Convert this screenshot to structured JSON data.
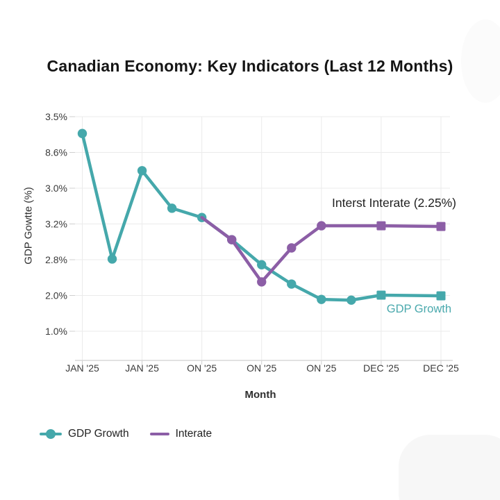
{
  "chart_data": {
    "type": "line",
    "title": "Canadian Economy: Key Indicators (Last 12 Months)",
    "xlabel": "Month",
    "ylabel": "GDP Gowtte (%)",
    "x_tick_labels": [
      "JAN '25",
      "JAN '25",
      "ON '25",
      "ON '25",
      "ON '25",
      "DEC '25",
      "DEC '25"
    ],
    "y_tick_labels": [
      "3.5%",
      "8.6%",
      "3.0%",
      "3.2%",
      "2.8%",
      "2.0%",
      "1.0%"
    ],
    "grid": true,
    "colors": {
      "gdp_teal": "#45A8AB",
      "interate_purple": "#8C5EA6",
      "grid_line": "#ebebeb",
      "axis_line": "#d8d8d8",
      "tick_mark": "#cfcfcf",
      "tick_text": "#3a3a3a",
      "title_text": "#151515",
      "annotation_text": "#1f1f1f"
    },
    "series": [
      {
        "name": "GDP Growth",
        "color": "#45A8AB",
        "marker_default": "circle",
        "points": [
          {
            "slot": 0,
            "v": 0.47,
            "m": "circle"
          },
          {
            "slot": 1,
            "v": 3.98,
            "m": "circle"
          },
          {
            "slot": 2,
            "v": 1.51,
            "m": "circle"
          },
          {
            "slot": 3,
            "v": 2.56,
            "m": "circle"
          },
          {
            "slot": 4,
            "v": 2.82,
            "m": "circle"
          },
          {
            "slot": 5,
            "v": 3.44,
            "m": "circle"
          },
          {
            "slot": 6,
            "v": 4.14,
            "m": "circle"
          },
          {
            "slot": 7,
            "v": 4.68,
            "m": "circle"
          },
          {
            "slot": 8,
            "v": 5.11,
            "m": "circle"
          },
          {
            "slot": 9,
            "v": 5.13,
            "m": "circle"
          },
          {
            "slot": 10,
            "v": 4.99,
            "m": "square"
          },
          {
            "slot": 12,
            "v": 5.01,
            "m": "square"
          }
        ]
      },
      {
        "name": "Interate",
        "color": "#8C5EA6",
        "marker_default": "circle",
        "points": [
          {
            "slot": 4,
            "v": 2.82,
            "m": "none"
          },
          {
            "slot": 5,
            "v": 3.44,
            "m": "circle"
          },
          {
            "slot": 6,
            "v": 4.62,
            "m": "circle"
          },
          {
            "slot": 7,
            "v": 3.67,
            "m": "circle"
          },
          {
            "slot": 8,
            "v": 3.05,
            "m": "circle"
          },
          {
            "slot": 10,
            "v": 3.05,
            "m": "square"
          },
          {
            "slot": 12,
            "v": 3.07,
            "m": "square"
          }
        ]
      }
    ],
    "annotations": [
      {
        "text": "Interst Interate (2.25%)",
        "x": 657,
        "y": 298,
        "anchor": "end",
        "size": 17.5,
        "color": "#1f1f1f"
      },
      {
        "text": "GDP Growth",
        "x": 650,
        "y": 450,
        "anchor": "end",
        "size": 16.5,
        "color": "#4AA9AD"
      }
    ],
    "legend": {
      "position": "bottom-left",
      "entries": [
        "GDP Growth",
        "Interate"
      ]
    }
  }
}
